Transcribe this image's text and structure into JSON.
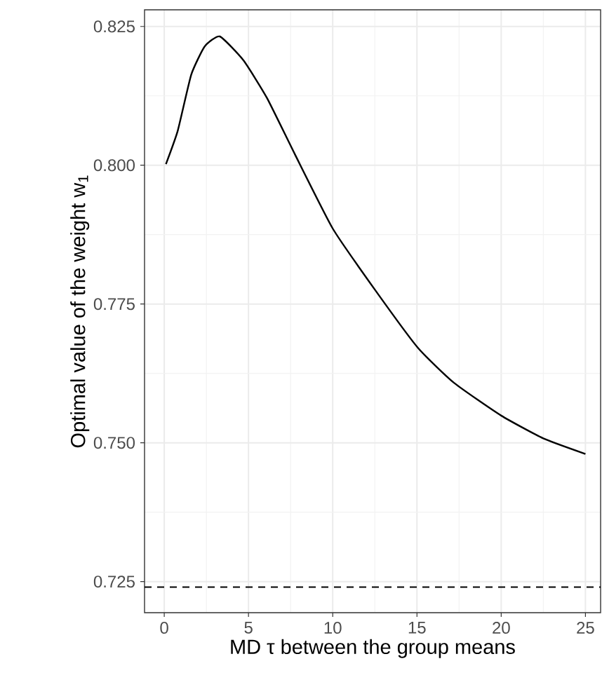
{
  "chart_data": {
    "type": "line",
    "xlabel": "MD τ between the group means",
    "ylabel": "Optimal value of the weight  w$_{1}$",
    "x": [
      0.1,
      0.8,
      1.6,
      2.4,
      3.3,
      4.7,
      6.1,
      7.75,
      10.0,
      12.5,
      15.06,
      17.2,
      20.0,
      22.5,
      25.0
    ],
    "series": [
      {
        "color": "#000000",
        "values": [
          0.8002,
          0.8062,
          0.8163,
          0.8214,
          0.8232,
          0.8189,
          0.8121,
          0.802,
          0.7886,
          0.7776,
          0.7671,
          0.7608,
          0.7549,
          0.7508,
          0.748
        ]
      }
    ],
    "xlim": [
      -1.17,
      25.9
    ],
    "ylim": [
      0.7194,
      0.828
    ],
    "xticks": [
      0,
      {
        "value": 2.5,
        "label": null
      },
      5,
      {
        "value": 7.5,
        "label": null
      },
      10,
      {
        "value": 12.5,
        "label": null
      },
      15,
      {
        "value": 17.5,
        "label": null
      },
      20,
      {
        "value": 22.5,
        "label": null
      },
      25
    ],
    "yticks": [
      {
        "value": 0.725,
        "label": "0.725"
      },
      {
        "value": 0.7375,
        "label": null
      },
      {
        "value": 0.75,
        "label": "0.750"
      },
      {
        "value": 0.7625,
        "label": null
      },
      {
        "value": 0.775,
        "label": "0.775"
      },
      {
        "value": 0.7875,
        "label": null
      },
      {
        "value": 0.8,
        "label": "0.800"
      },
      {
        "value": 0.8125,
        "label": null
      },
      {
        "value": 0.825,
        "label": "0.825"
      }
    ],
    "grid": true,
    "line_style": "solid",
    "marker": "none",
    "ref_lines": [
      {
        "axis": "y",
        "value": 0.724,
        "label": null,
        "color": "#000000",
        "line_style": "dashed"
      }
    ]
  }
}
